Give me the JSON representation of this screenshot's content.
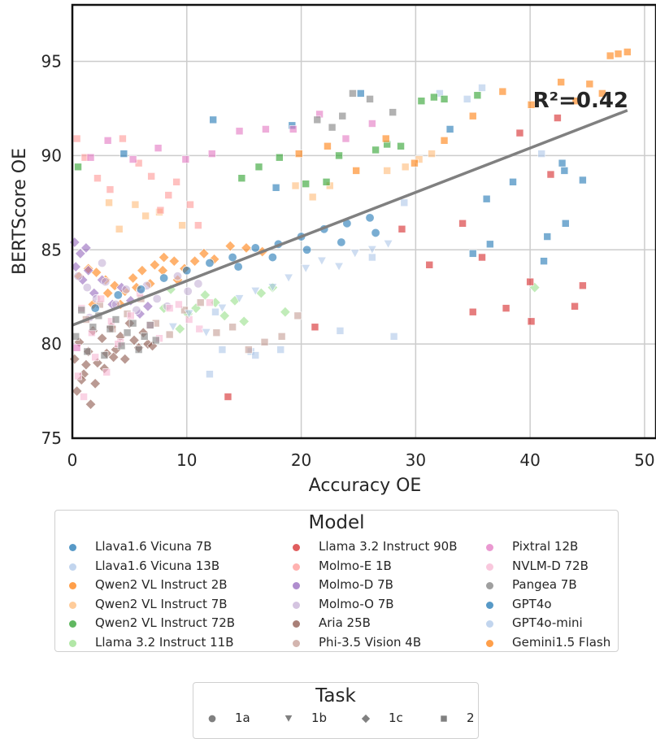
{
  "chart_data": {
    "type": "scatter",
    "xlabel": "Accuracy OE",
    "ylabel": "BERTScore OE",
    "xlim": [
      0,
      51
    ],
    "ylim": [
      75,
      98
    ],
    "x_ticks": [
      0,
      10,
      20,
      30,
      40,
      50
    ],
    "y_ticks": [
      75,
      80,
      85,
      90,
      95
    ],
    "grid": true,
    "annotation": "R²=0.42",
    "regression_line": {
      "x": [
        0,
        48.5
      ],
      "y": [
        81.0,
        92.4
      ],
      "color": "#808080"
    },
    "legend_model": {
      "title": "Model",
      "placement": "bottom",
      "entries": [
        {
          "name": "Llava1.6 Vicuna 7B",
          "color": "#1f77b4"
        },
        {
          "name": "Llava1.6 Vicuna 13B",
          "color": "#aec7e8"
        },
        {
          "name": "Qwen2 VL Instruct 2B",
          "color": "#ff7f0e"
        },
        {
          "name": "Qwen2 VL Instruct 7B",
          "color": "#ffbb78"
        },
        {
          "name": "Qwen2 VL Instruct 72B",
          "color": "#2ca02c"
        },
        {
          "name": "Llama 3.2 Instruct 11B",
          "color": "#98df8a"
        },
        {
          "name": "Llama 3.2 Instruct 90B",
          "color": "#d62728"
        },
        {
          "name": "Molmo-E 1B",
          "color": "#ff9896"
        },
        {
          "name": "Molmo-D 7B",
          "color": "#9467bd"
        },
        {
          "name": "Molmo-O 7B",
          "color": "#c5b0d5"
        },
        {
          "name": "Aria 25B",
          "color": "#8c564b"
        },
        {
          "name": "Phi-3.5 Vision 4B",
          "color": "#c49c94"
        },
        {
          "name": "Pixtral 12B",
          "color": "#e377c2"
        },
        {
          "name": "NVLM-D 72B",
          "color": "#f7b6d2"
        },
        {
          "name": "Pangea 7B",
          "color": "#7f7f7f"
        },
        {
          "name": "GPT4o",
          "color": "#1f77b4"
        },
        {
          "name": "GPT4o-mini",
          "color": "#aec7e8"
        },
        {
          "name": "Gemini1.5 Flash",
          "color": "#ff7f0e"
        }
      ]
    },
    "legend_task": {
      "title": "Task",
      "placement": "bottom",
      "entries": [
        {
          "name": "1a",
          "marker": "circle"
        },
        {
          "name": "1b",
          "marker": "triangle-down"
        },
        {
          "name": "1c",
          "marker": "diamond"
        },
        {
          "name": "2",
          "marker": "square"
        }
      ]
    },
    "series": [
      {
        "name": "Llava1.6 Vicuna 7B",
        "color": "#1f77b4",
        "marker": "square",
        "x": [
          4.5,
          12.3,
          19.2,
          25.2,
          17.8,
          33.0,
          36.2,
          41.5,
          43.1,
          44.6,
          36.5,
          42.8,
          38.5,
          43.0,
          35.0,
          41.2
        ],
        "y": [
          90.1,
          91.9,
          91.6,
          93.3,
          88.3,
          91.4,
          87.7,
          85.7,
          86.4,
          88.7,
          85.3,
          89.6,
          88.6,
          89.2,
          84.8,
          84.4
        ]
      },
      {
        "name": "Llava1.6 Vicuna 13B",
        "color": "#aec7e8",
        "marker": "square",
        "x": [
          12.0,
          15.6,
          18.2,
          23.4,
          32.1,
          34.5,
          28.1,
          35.8,
          41.0,
          13.1,
          16.0,
          12.5,
          26.2,
          29.0
        ],
        "y": [
          78.4,
          79.6,
          79.7,
          80.7,
          93.3,
          93.0,
          80.4,
          93.6,
          90.1,
          79.7,
          79.4,
          81.7,
          84.6,
          87.5
        ]
      },
      {
        "name": "Qwen2 VL Instruct 2B",
        "color": "#ff7f0e",
        "marker": "diamond",
        "x": [
          4.6,
          5.3,
          6.1,
          7.2,
          8.0,
          8.9,
          9.8,
          10.7,
          11.5,
          12.4,
          13.8,
          15.2,
          16.6,
          3.7,
          2.9,
          2.1,
          1.4,
          0.6,
          1.8,
          3.1,
          4.2,
          5.6,
          6.8,
          7.9,
          9.2
        ],
        "y": [
          82.8,
          83.5,
          83.9,
          84.2,
          84.6,
          84.4,
          84.0,
          84.4,
          84.8,
          84.5,
          85.2,
          85.1,
          84.9,
          83.1,
          83.4,
          83.8,
          84.0,
          83.6,
          82.1,
          82.7,
          82.1,
          83.0,
          83.2,
          83.9,
          83.4
        ]
      },
      {
        "name": "Qwen2 VL Instruct 7B",
        "color": "#ffbb78",
        "marker": "square",
        "x": [
          3.2,
          4.1,
          5.5,
          6.4,
          7.6,
          9.6,
          21.0,
          22.5,
          27.5,
          29.1,
          30.3,
          31.4,
          19.5
        ],
        "y": [
          87.5,
          86.1,
          87.4,
          86.8,
          87.0,
          86.3,
          87.8,
          88.4,
          89.2,
          89.4,
          89.8,
          90.1,
          88.4
        ]
      },
      {
        "name": "Qwen2 VL Instruct 72B",
        "color": "#2ca02c",
        "marker": "square",
        "x": [
          0.5,
          14.8,
          16.3,
          18.1,
          20.4,
          22.2,
          23.3,
          26.5,
          27.5,
          28.7,
          30.5,
          31.6,
          32.5,
          35.4
        ],
        "y": [
          89.4,
          88.8,
          89.4,
          89.9,
          88.5,
          88.6,
          90.0,
          90.3,
          90.6,
          90.5,
          92.9,
          93.1,
          93.0,
          93.2
        ]
      },
      {
        "name": "Llama 3.2 Instruct 11B",
        "color": "#98df8a",
        "marker": "diamond",
        "x": [
          10.1,
          10.8,
          11.6,
          12.5,
          13.3,
          14.2,
          15.0,
          9.4,
          8.6,
          8.0,
          16.5,
          17.5,
          18.6,
          40.4
        ],
        "y": [
          81.6,
          81.9,
          82.6,
          82.2,
          81.5,
          82.3,
          81.2,
          80.8,
          82.9,
          81.9,
          82.7,
          83.0,
          81.7,
          83.0
        ]
      },
      {
        "name": "Llama 3.2 Instruct 90B",
        "color": "#d62728",
        "marker": "square",
        "x": [
          13.6,
          21.2,
          28.8,
          31.2,
          35.0,
          39.1,
          40.1,
          41.8,
          42.4,
          44.6,
          37.9,
          35.8,
          34.1,
          40.0,
          43.9
        ],
        "y": [
          77.2,
          80.9,
          86.1,
          84.2,
          81.7,
          91.2,
          81.2,
          89.0,
          92.0,
          83.1,
          81.9,
          84.6,
          86.4,
          83.3,
          82.0
        ]
      },
      {
        "name": "Molmo-E 1B",
        "color": "#ff9896",
        "marker": "square",
        "x": [
          0.4,
          1.1,
          2.2,
          3.3,
          4.4,
          5.8,
          6.9,
          7.7,
          8.4,
          9.1,
          10.3,
          11.0
        ],
        "y": [
          90.9,
          89.9,
          88.8,
          88.2,
          90.9,
          89.6,
          88.9,
          87.1,
          87.9,
          88.6,
          87.4,
          86.3
        ]
      },
      {
        "name": "Molmo-D 7B",
        "color": "#9467bd",
        "marker": "diamond",
        "x": [
          0.3,
          0.9,
          1.4,
          1.9,
          2.6,
          3.5,
          4.3,
          5.1,
          5.9,
          6.6,
          0.2,
          0.7,
          1.2
        ],
        "y": [
          84.1,
          83.4,
          83.9,
          82.7,
          83.4,
          82.1,
          83.0,
          82.3,
          81.6,
          82.0,
          85.4,
          84.8,
          85.1
        ]
      },
      {
        "name": "Molmo-O 7B",
        "color": "#c5b0d5",
        "marker": "circle",
        "x": [
          0.5,
          1.3,
          2.1,
          2.9,
          3.8,
          4.7,
          5.6,
          6.5,
          7.4,
          8.3,
          9.2,
          10.1,
          11.0,
          1.5,
          2.6
        ],
        "y": [
          83.6,
          83.0,
          82.4,
          83.3,
          82.1,
          82.9,
          81.8,
          83.1,
          82.4,
          82.0,
          83.6,
          82.8,
          83.2,
          81.4,
          84.3
        ]
      },
      {
        "name": "Aria 25B",
        "color": "#8c564b",
        "marker": "diamond",
        "x": [
          0.2,
          0.6,
          1.0,
          1.4,
          1.8,
          2.2,
          2.6,
          3.0,
          3.4,
          3.8,
          4.2,
          4.6,
          5.0,
          5.4,
          5.8,
          6.2,
          6.6,
          7.0,
          1.2,
          2.0,
          2.8,
          3.6,
          0.4,
          0.8,
          1.6
        ],
        "y": [
          79.2,
          80.1,
          78.4,
          79.6,
          80.7,
          79.0,
          80.3,
          79.5,
          80.9,
          79.7,
          80.4,
          79.2,
          81.1,
          80.2,
          79.8,
          80.6,
          80.0,
          79.9,
          78.9,
          77.9,
          78.7,
          79.3,
          77.5,
          78.1,
          76.8
        ]
      },
      {
        "name": "Phi-3.5 Vision 4B",
        "color": "#c49c94",
        "marker": "square",
        "x": [
          1.2,
          2.4,
          3.5,
          4.8,
          6.0,
          7.3,
          8.5,
          9.8,
          11.2,
          12.6,
          14.0,
          15.4,
          16.8,
          18.3,
          19.7
        ],
        "y": [
          81.3,
          82.1,
          80.8,
          81.6,
          82.4,
          81.1,
          80.5,
          81.8,
          82.2,
          80.6,
          80.9,
          79.7,
          80.1,
          80.4,
          81.5
        ]
      },
      {
        "name": "Pixtral 12B",
        "color": "#e377c2",
        "marker": "square",
        "x": [
          1.6,
          3.1,
          5.3,
          7.5,
          9.9,
          12.2,
          14.6,
          16.9,
          19.3,
          21.6,
          23.9,
          26.2,
          0.4
        ],
        "y": [
          89.9,
          90.8,
          89.8,
          90.4,
          89.8,
          90.1,
          91.3,
          91.4,
          91.4,
          92.2,
          90.9,
          91.7,
          79.8
        ]
      },
      {
        "name": "NVLM-D 72B",
        "color": "#f7b6d2",
        "marker": "square",
        "x": [
          0.8,
          1.7,
          2.5,
          3.4,
          4.2,
          5.1,
          5.9,
          6.8,
          7.6,
          8.5,
          9.3,
          10.2,
          11.1,
          12.0,
          0.5,
          1.0,
          2.0,
          3.0,
          4.0
        ],
        "y": [
          81.9,
          80.6,
          82.4,
          81.2,
          80.1,
          81.5,
          82.7,
          81.0,
          80.3,
          81.9,
          82.1,
          81.3,
          80.8,
          82.2,
          78.3,
          77.2,
          79.3,
          78.5,
          80.0
        ]
      },
      {
        "name": "Pangea 7B",
        "color": "#7f7f7f",
        "marker": "square",
        "x": [
          0.3,
          0.8,
          1.3,
          1.8,
          2.3,
          2.8,
          3.3,
          3.8,
          4.3,
          4.8,
          5.3,
          5.8,
          6.3,
          6.8,
          7.3,
          22.7,
          24.5,
          26.0,
          21.4,
          23.6,
          28.0
        ],
        "y": [
          80.4,
          81.8,
          79.6,
          80.9,
          81.5,
          79.4,
          80.8,
          81.3,
          79.9,
          80.6,
          81.1,
          79.7,
          80.4,
          81.0,
          80.2,
          91.5,
          93.3,
          93.0,
          91.9,
          92.1,
          92.3
        ]
      },
      {
        "name": "GPT4o",
        "color": "#1f77b4",
        "marker": "circle",
        "x": [
          2.0,
          4.0,
          6.0,
          8.0,
          10.0,
          12.0,
          14.0,
          16.0,
          18.0,
          20.0,
          22.0,
          24.0,
          26.0,
          14.5,
          17.5,
          20.5,
          23.5,
          26.5
        ],
        "y": [
          81.9,
          82.6,
          82.9,
          83.5,
          83.9,
          84.3,
          84.6,
          85.1,
          85.3,
          85.7,
          86.1,
          86.4,
          86.7,
          84.1,
          84.6,
          85.0,
          85.4,
          85.9
        ]
      },
      {
        "name": "GPT4o-mini",
        "color": "#aec7e8",
        "marker": "triangle-down",
        "x": [
          8.8,
          10.2,
          11.7,
          13.1,
          14.6,
          16.0,
          17.5,
          18.9,
          20.4,
          21.8,
          23.3,
          24.7,
          26.2,
          27.6
        ],
        "y": [
          80.9,
          81.6,
          80.6,
          81.9,
          82.4,
          82.8,
          83.0,
          83.5,
          84.0,
          84.4,
          84.1,
          84.8,
          85.0,
          85.3
        ]
      },
      {
        "name": "Gemini1.5 Flash",
        "color": "#ff7f0e",
        "marker": "square",
        "x": [
          19.8,
          22.3,
          24.8,
          27.4,
          29.9,
          32.5,
          35.0,
          37.6,
          40.1,
          42.7,
          44.0,
          45.2,
          47.0,
          47.7,
          48.5,
          46.3
        ],
        "y": [
          90.1,
          90.5,
          89.2,
          90.9,
          89.6,
          90.8,
          92.1,
          93.4,
          92.7,
          93.9,
          92.9,
          93.8,
          95.3,
          95.4,
          95.5,
          93.3
        ]
      }
    ]
  }
}
